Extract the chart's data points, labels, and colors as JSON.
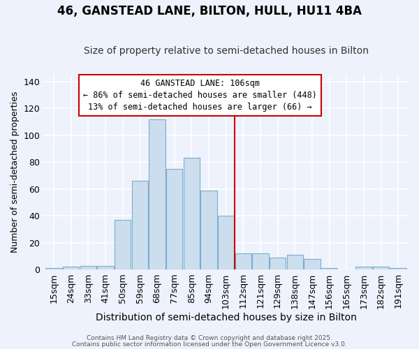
{
  "title": "46, GANSTEAD LANE, BILTON, HULL, HU11 4BA",
  "subtitle": "Size of property relative to semi-detached houses in Bilton",
  "xlabel": "Distribution of semi-detached houses by size in Bilton",
  "ylabel": "Number of semi-detached properties",
  "footer1": "Contains HM Land Registry data © Crown copyright and database right 2025.",
  "footer2": "Contains public sector information licensed under the Open Government Licence v3.0.",
  "categories": [
    "15sqm",
    "24sqm",
    "33sqm",
    "41sqm",
    "50sqm",
    "59sqm",
    "68sqm",
    "77sqm",
    "85sqm",
    "94sqm",
    "103sqm",
    "112sqm",
    "121sqm",
    "129sqm",
    "138sqm",
    "147sqm",
    "156sqm",
    "165sqm",
    "173sqm",
    "182sqm",
    "191sqm"
  ],
  "values": [
    1,
    2,
    3,
    3,
    37,
    66,
    112,
    75,
    83,
    59,
    40,
    12,
    12,
    9,
    11,
    8,
    1,
    0,
    2,
    2,
    1
  ],
  "bar_color": "#ccdded",
  "bar_edge_color": "#7aadd0",
  "vline_x_index": 10.5,
  "vline_color": "#cc0000",
  "annotation_title": "46 GANSTEAD LANE: 106sqm",
  "annotation_line1": "← 86% of semi-detached houses are smaller (448)",
  "annotation_line2": "13% of semi-detached houses are larger (66) →",
  "annotation_box_edgecolor": "#cc0000",
  "annotation_bg": "#ffffff",
  "ylim": [
    0,
    145
  ],
  "yticks": [
    0,
    20,
    40,
    60,
    80,
    100,
    120,
    140
  ],
  "background_color": "#eef2fc",
  "grid_color": "#ffffff",
  "title_fontsize": 12,
  "subtitle_fontsize": 10,
  "xlabel_fontsize": 10,
  "ylabel_fontsize": 9,
  "tick_fontsize": 9,
  "annot_fontsize": 8.5
}
